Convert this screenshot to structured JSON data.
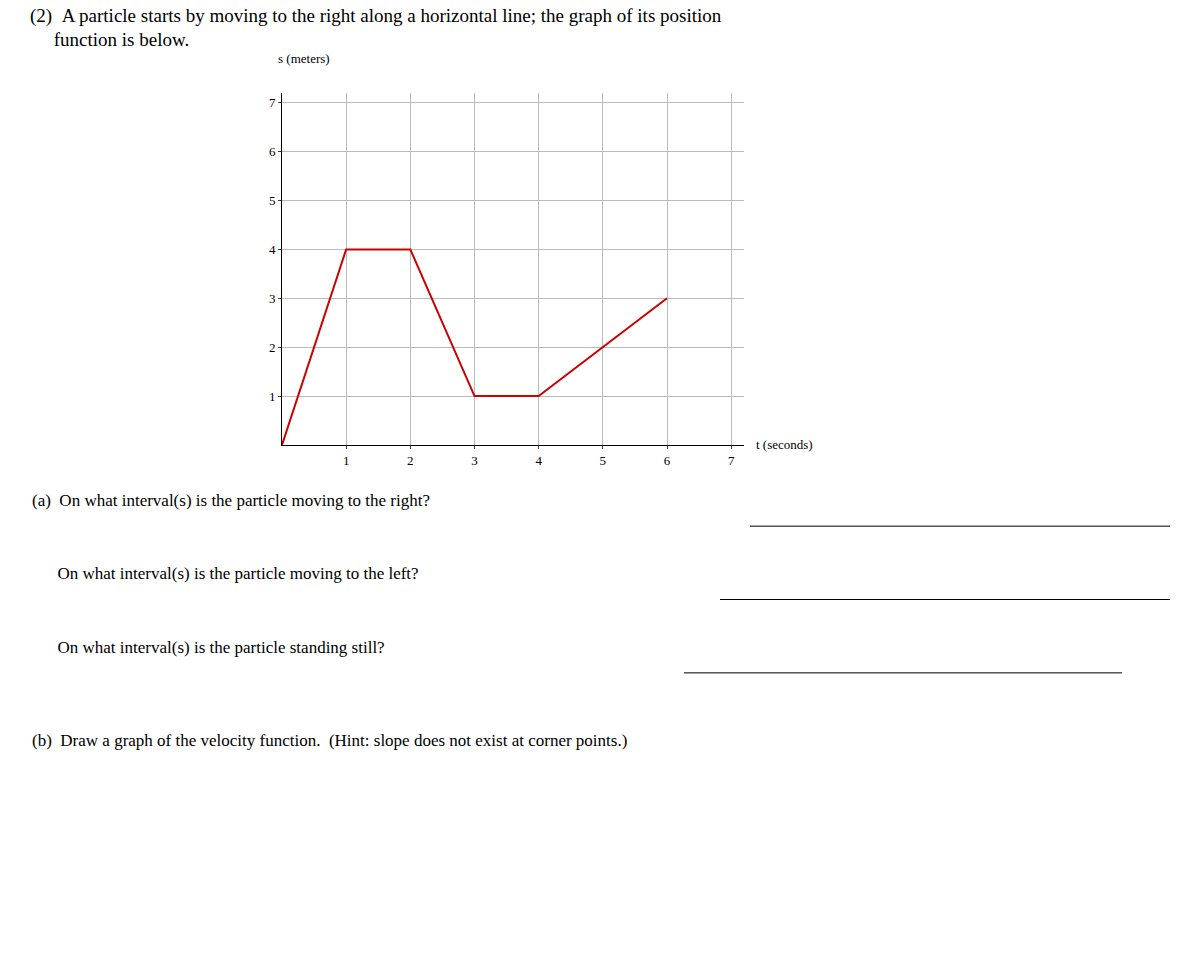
{
  "chart_data": {
    "type": "line",
    "title": "(2)  A particle starts by moving to the right along a horizontal line; the graph of its position\n     function is below.",
    "x": [
      0,
      1,
      2,
      3,
      4,
      6
    ],
    "values": [
      0,
      4,
      4,
      1,
      1,
      3
    ],
    "color": "#cc0000",
    "xlabel": "t (seconds)",
    "ylabel": "s (meters)",
    "xlim": [
      0,
      7.2
    ],
    "ylim": [
      0,
      7.2
    ],
    "xticks": [
      1,
      2,
      3,
      4,
      5,
      6,
      7
    ],
    "yticks": [
      1,
      2,
      3,
      4,
      5,
      6,
      7
    ],
    "grid": true,
    "annotations": [
      "(a)  On what interval(s) is the particle moving to the right?",
      "      On what interval(s) is the particle moving to the left?",
      "      On what interval(s) is the particle standing still?",
      "(b)  Draw a graph of the velocity function.  (Hint: slope does not exist at corner points.)"
    ]
  }
}
